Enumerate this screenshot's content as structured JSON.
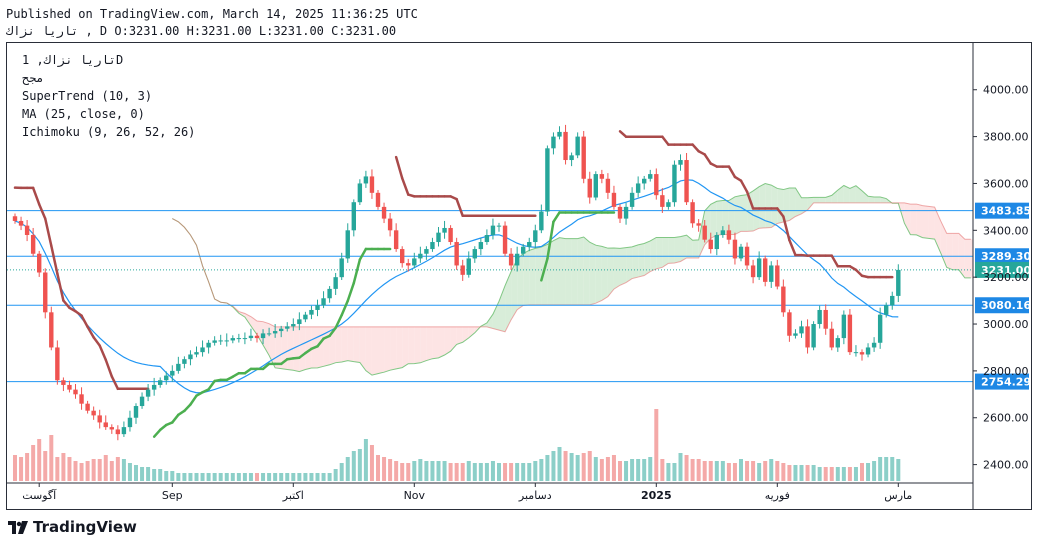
{
  "header": {
    "published": "Published on TradingView.com, March 14, 2025 11:36:25 UTC",
    "ohlc": "تاريا نزاك , D O:3231.00 H:3231.00 L:3231.00 C:3231.00"
  },
  "legend": {
    "symbol": "تاريا نزاك, 1D",
    "sub": "مجح",
    "supertrend": "SuperTrend (10, 3)",
    "ma": "MA (25, close, 0)",
    "ichimoku": "Ichimoku (9, 26, 52, 26)"
  },
  "footer": {
    "brand": "TradingView"
  },
  "colors": {
    "up": "#26a69a",
    "down": "#ef5350",
    "supertrend_down": "#a94a4a",
    "supertrend_up": "#4caf50",
    "ma": "#2196f3",
    "cloud_bull": "#c8e6c9",
    "cloud_bear": "#fcd9d9",
    "level_line": "#2196f3",
    "label_bg": "#1e88e5"
  },
  "chart_data": {
    "type": "candlestick",
    "x_tick_labels": [
      "آگوست",
      "Sep",
      "اکتبر",
      "Nov",
      "دسامبر",
      "2025",
      "فوریه",
      "مارس"
    ],
    "x_tick_index": [
      4,
      26,
      46,
      66,
      86,
      106,
      126,
      146
    ],
    "y_ticks": [
      2400,
      2600,
      2800,
      3000,
      3200,
      3400,
      3600,
      3800,
      4000
    ],
    "y_tick_labels": [
      "2400.00",
      "2600.00",
      "2800.00",
      "3000.00",
      "3200.00",
      "3400.00",
      "3600.00",
      "3800.00",
      "4000.00"
    ],
    "ylim": [
      2330,
      4080
    ],
    "price_levels": [
      {
        "value": 3483.85,
        "label": "3483.85"
      },
      {
        "value": 3289.3,
        "label": "3289.30"
      },
      {
        "value": 3080.16,
        "label": "3080.16"
      },
      {
        "value": 2754.29,
        "label": "2754.29"
      }
    ],
    "last_price": {
      "value": 3231.0,
      "label": "3231.00"
    },
    "close": [
      3440,
      3420,
      3380,
      3300,
      3220,
      3050,
      2900,
      2760,
      2740,
      2720,
      2700,
      2660,
      2630,
      2610,
      2580,
      2560,
      2550,
      2530,
      2560,
      2600,
      2650,
      2690,
      2720,
      2740,
      2760,
      2780,
      2800,
      2830,
      2850,
      2870,
      2880,
      2900,
      2920,
      2930,
      2930,
      2930,
      2940,
      2940,
      2940,
      2950,
      2940,
      2960,
      2960,
      2970,
      2980,
      2990,
      3000,
      3020,
      3040,
      3060,
      3080,
      3110,
      3150,
      3200,
      3280,
      3400,
      3520,
      3600,
      3630,
      3560,
      3500,
      3450,
      3400,
      3320,
      3260,
      3250,
      3280,
      3300,
      3320,
      3350,
      3390,
      3410,
      3350,
      3250,
      3210,
      3280,
      3320,
      3350,
      3380,
      3420,
      3420,
      3300,
      3250,
      3300,
      3330,
      3350,
      3400,
      3480,
      3750,
      3800,
      3820,
      3700,
      3720,
      3800,
      3620,
      3540,
      3640,
      3620,
      3560,
      3500,
      3450,
      3500,
      3560,
      3600,
      3620,
      3640,
      3550,
      3500,
      3520,
      3680,
      3700,
      3520,
      3430,
      3420,
      3360,
      3320,
      3380,
      3400,
      3360,
      3280,
      3330,
      3250,
      3200,
      3280,
      3180,
      3250,
      3160,
      3050,
      2950,
      2960,
      2990,
      2900,
      3000,
      3060,
      2980,
      2900,
      2940,
      3040,
      2880,
      2880,
      2870,
      2900,
      2920,
      3040,
      3080,
      3120,
      3231
    ],
    "volume": [
      130,
      120,
      140,
      180,
      210,
      150,
      230,
      120,
      140,
      120,
      100,
      90,
      100,
      110,
      110,
      130,
      100,
      120,
      110,
      90,
      80,
      70,
      70,
      60,
      60,
      50,
      50,
      40,
      40,
      40,
      40,
      40,
      40,
      40,
      40,
      40,
      40,
      40,
      40,
      40,
      40,
      40,
      40,
      40,
      40,
      40,
      40,
      40,
      40,
      40,
      40,
      40,
      40,
      60,
      90,
      120,
      150,
      160,
      210,
      180,
      130,
      120,
      110,
      100,
      90,
      90,
      100,
      110,
      100,
      100,
      100,
      100,
      90,
      90,
      90,
      100,
      90,
      90,
      90,
      100,
      90,
      90,
      90,
      90,
      90,
      90,
      100,
      110,
      130,
      150,
      170,
      150,
      140,
      130,
      140,
      150,
      120,
      110,
      120,
      130,
      100,
      100,
      110,
      110,
      110,
      120,
      360,
      110,
      90,
      90,
      140,
      130,
      110,
      110,
      100,
      100,
      100,
      100,
      90,
      90,
      110,
      100,
      100,
      90,
      100,
      110,
      100,
      90,
      80,
      80,
      80,
      80,
      80,
      70,
      70,
      70,
      70,
      70,
      70,
      70,
      90,
      90,
      100,
      120,
      120,
      120,
      110
    ]
  }
}
